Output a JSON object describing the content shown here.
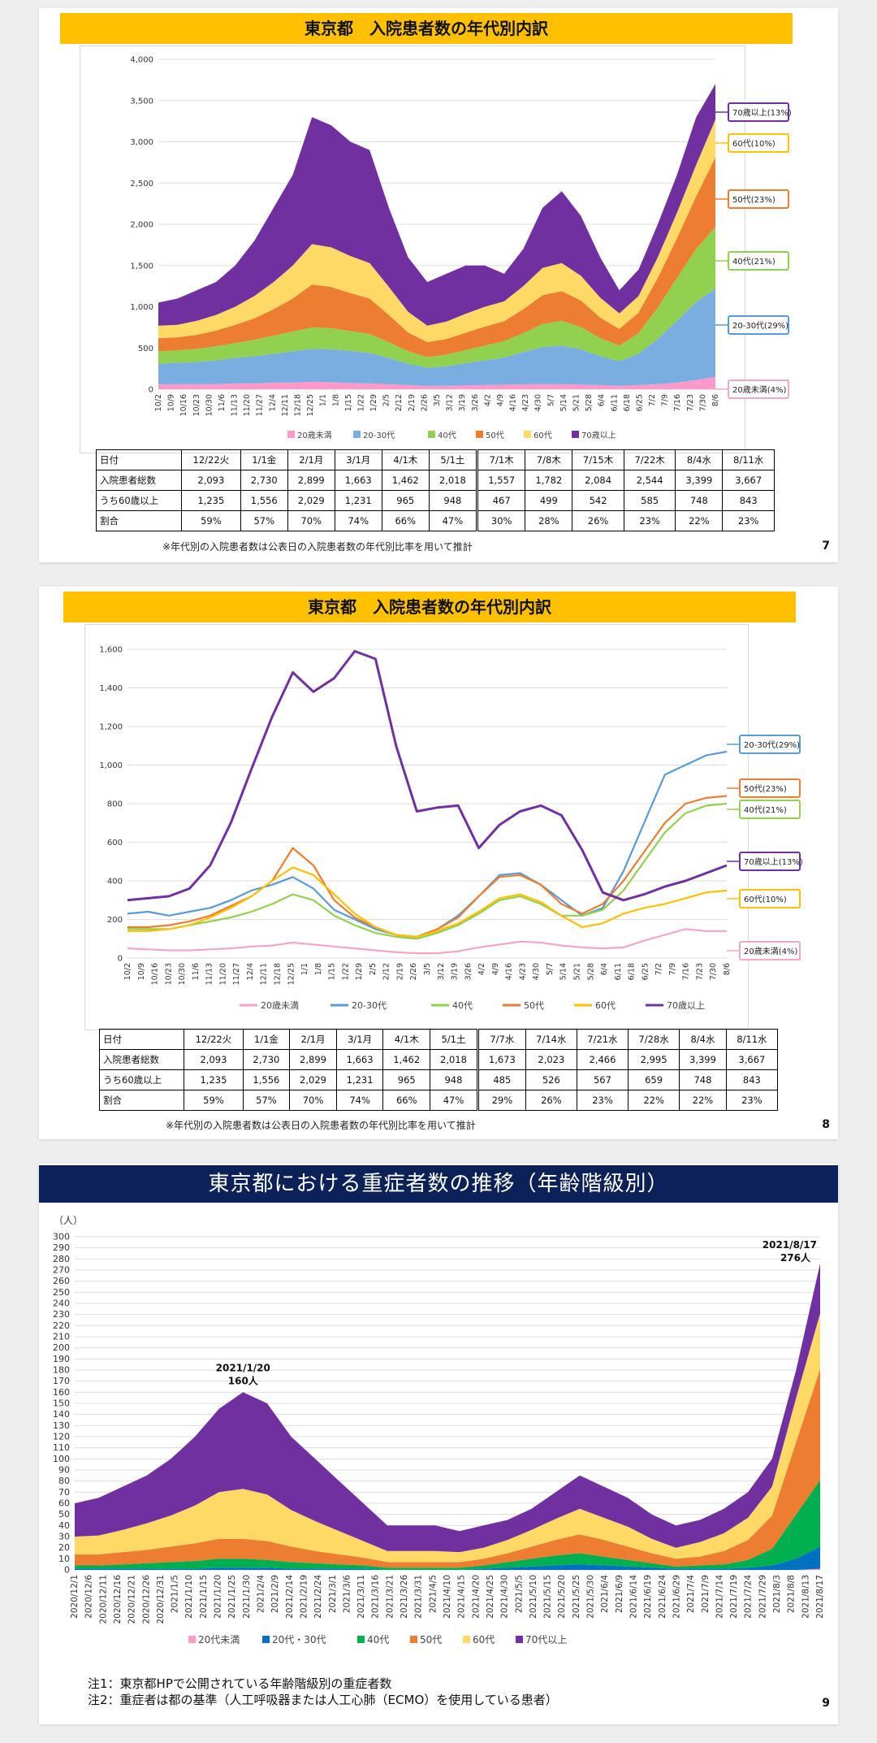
{
  "slide1": {
    "title": "東京都　入院患者数の年代別内訳",
    "page": "7",
    "note": "※年代別の入院患者数は公表日の入院患者数の年代別比率を用いて推計",
    "chart_data": {
      "type": "area",
      "stacked": true,
      "ylim": [
        0,
        4000
      ],
      "yticks": [
        0,
        500,
        1000,
        1500,
        2000,
        2500,
        3000,
        3500,
        4000
      ],
      "xtick_labels": [
        "10/2",
        "10/9",
        "10/16",
        "10/23",
        "10/30",
        "11/6",
        "11/13",
        "11/20",
        "11/27",
        "12/4",
        "12/11",
        "12/18",
        "12/25",
        "1/1",
        "1/8",
        "1/15",
        "1/22",
        "1/29",
        "2/5",
        "2/12",
        "2/19",
        "2/26",
        "3/5",
        "3/12",
        "3/19",
        "3/26",
        "4/2",
        "4/9",
        "4/16",
        "4/23",
        "4/30",
        "5/7",
        "5/14",
        "5/21",
        "5/28",
        "6/4",
        "6/11",
        "6/18",
        "6/25",
        "7/2",
        "7/9",
        "7/16",
        "7/23",
        "7/30",
        "8/6"
      ],
      "legend": [
        "20歳未満",
        "20-30代",
        "40代",
        "50代",
        "60代",
        "70歳以上"
      ],
      "total": [
        1050,
        1100,
        1200,
        1300,
        1500,
        1800,
        2200,
        2600,
        3300,
        3200,
        3000,
        2900,
        2200,
        1600,
        1300,
        1400,
        1500,
        1500,
        1400,
        1700,
        2200,
        2400,
        2100,
        1600,
        1200,
        1450,
        2000,
        2600,
        3300,
        3700
      ],
      "series": [
        {
          "name": "20歳未満",
          "color": "#ff99cc",
          "values": [
            60,
            60,
            60,
            60,
            70,
            70,
            80,
            80,
            90,
            85,
            75,
            70,
            60,
            50,
            40,
            40,
            45,
            50,
            55,
            60,
            60,
            60,
            55,
            50,
            40,
            50,
            60,
            80,
            110,
            150
          ]
        },
        {
          "name": "20-30代",
          "color": "#7aaee0",
          "values": [
            250,
            260,
            270,
            290,
            310,
            330,
            350,
            380,
            400,
            400,
            390,
            370,
            320,
            260,
            220,
            240,
            270,
            300,
            330,
            390,
            450,
            470,
            430,
            350,
            300,
            380,
            550,
            750,
            950,
            1070
          ]
        },
        {
          "name": "40代",
          "color": "#92d050",
          "values": [
            150,
            150,
            160,
            170,
            180,
            200,
            220,
            240,
            260,
            255,
            240,
            230,
            190,
            150,
            130,
            140,
            160,
            180,
            200,
            230,
            280,
            300,
            270,
            220,
            190,
            250,
            380,
            520,
            640,
            750
          ]
        },
        {
          "name": "50代",
          "color": "#ed7d31",
          "values": [
            160,
            160,
            170,
            190,
            220,
            260,
            320,
            400,
            520,
            500,
            460,
            430,
            330,
            230,
            180,
            190,
            210,
            230,
            240,
            290,
            350,
            360,
            320,
            250,
            200,
            250,
            360,
            480,
            640,
            840
          ]
        },
        {
          "name": "60代",
          "color": "#ffd966",
          "values": [
            150,
            150,
            170,
            190,
            220,
            270,
            330,
            400,
            490,
            480,
            450,
            430,
            340,
            250,
            200,
            210,
            230,
            240,
            240,
            280,
            330,
            340,
            300,
            240,
            190,
            200,
            250,
            310,
            380,
            460
          ]
        },
        {
          "name": "70歳以上",
          "color": "#7030a0",
          "values": [
            280,
            320,
            370,
            400,
            500,
            670,
            900,
            1100,
            1540,
            1480,
            1385,
            1370,
            960,
            660,
            530,
            580,
            585,
            500,
            335,
            450,
            730,
            870,
            725,
            490,
            280,
            320,
            400,
            460,
            580,
            430
          ]
        }
      ],
      "annotations": [
        "70歳以上(13%)",
        "60代(10%)",
        "50代(23%)",
        "40代(21%)",
        "20-30代(29%)",
        "20歳未満(4%)"
      ]
    },
    "table": {
      "header": [
        "日付",
        "12/22火",
        "1/1金",
        "2/1月",
        "3/1月",
        "4/1木",
        "5/1土",
        "7/1木",
        "7/8木",
        "7/15木",
        "7/22木",
        "8/4水",
        "8/11水"
      ],
      "rows": [
        [
          "入院患者総数",
          "2,093",
          "2,730",
          "2,899",
          "1,663",
          "1,462",
          "2,018",
          "1,557",
          "1,782",
          "2,084",
          "2,544",
          "3,399",
          "3,667"
        ],
        [
          "うち60歳以上",
          "1,235",
          "1,556",
          "2,029",
          "1,231",
          "965",
          "948",
          "467",
          "499",
          "542",
          "585",
          "748",
          "843"
        ],
        [
          "割合",
          "59%",
          "57%",
          "70%",
          "74%",
          "66%",
          "47%",
          "30%",
          "28%",
          "26%",
          "23%",
          "22%",
          "23%"
        ]
      ]
    }
  },
  "slide2": {
    "title": "東京都　入院患者数の年代別内訳",
    "page": "8",
    "note": "※年代別の入院患者数は公表日の入院患者数の年代別比率を用いて推計",
    "chart_data": {
      "type": "line",
      "ylim": [
        0,
        1600
      ],
      "yticks": [
        0,
        200,
        400,
        600,
        800,
        1000,
        1200,
        1400,
        1600
      ],
      "xtick_labels": [
        "10/2",
        "10/9",
        "10/16",
        "10/23",
        "10/30",
        "11/6",
        "11/13",
        "11/20",
        "11/27",
        "12/4",
        "12/11",
        "12/18",
        "12/25",
        "1/1",
        "1/8",
        "1/15",
        "1/22",
        "1/29",
        "2/5",
        "2/12",
        "2/19",
        "2/26",
        "3/5",
        "3/12",
        "3/19",
        "3/26",
        "4/2",
        "4/9",
        "4/16",
        "4/23",
        "4/30",
        "5/7",
        "5/14",
        "5/21",
        "5/28",
        "6/4",
        "6/11",
        "6/18",
        "6/25",
        "7/2",
        "7/9",
        "7/16",
        "7/23",
        "7/30",
        "8/6"
      ],
      "legend": [
        "20歳未満",
        "20-30代",
        "40代",
        "50代",
        "60代",
        "70歳以上"
      ],
      "series": [
        {
          "name": "20歳未満",
          "color": "#f4a6c8",
          "values": [
            50,
            45,
            40,
            40,
            45,
            50,
            60,
            65,
            80,
            70,
            60,
            50,
            40,
            30,
            25,
            25,
            35,
            55,
            70,
            85,
            80,
            65,
            55,
            50,
            55,
            90,
            120,
            150,
            140,
            140
          ]
        },
        {
          "name": "20-30代",
          "color": "#5b9bd5",
          "values": [
            230,
            240,
            220,
            240,
            260,
            300,
            350,
            380,
            420,
            360,
            250,
            200,
            150,
            120,
            110,
            150,
            220,
            320,
            430,
            440,
            380,
            300,
            220,
            260,
            450,
            700,
            950,
            1000,
            1050,
            1070
          ]
        },
        {
          "name": "40代",
          "color": "#92d050",
          "values": [
            150,
            150,
            150,
            170,
            190,
            210,
            240,
            280,
            330,
            300,
            220,
            170,
            130,
            110,
            100,
            130,
            170,
            230,
            300,
            320,
            280,
            220,
            220,
            250,
            350,
            500,
            650,
            750,
            790,
            800
          ]
        },
        {
          "name": "50代",
          "color": "#ed7d31",
          "values": [
            160,
            160,
            170,
            190,
            220,
            270,
            320,
            400,
            570,
            480,
            300,
            210,
            160,
            120,
            110,
            150,
            210,
            320,
            420,
            430,
            380,
            280,
            230,
            280,
            400,
            550,
            700,
            800,
            830,
            840
          ]
        },
        {
          "name": "60代",
          "color": "#ffc000",
          "values": [
            140,
            140,
            150,
            170,
            210,
            260,
            320,
            400,
            470,
            430,
            330,
            230,
            160,
            120,
            110,
            140,
            180,
            240,
            310,
            330,
            290,
            220,
            160,
            180,
            230,
            260,
            280,
            310,
            340,
            350
          ]
        },
        {
          "name": "70歳以上",
          "color": "#7030a0",
          "values": [
            300,
            310,
            320,
            360,
            480,
            700,
            980,
            1250,
            1480,
            1380,
            1450,
            1590,
            1550,
            1100,
            760,
            780,
            790,
            570,
            690,
            760,
            790,
            740,
            560,
            340,
            300,
            330,
            370,
            400,
            440,
            480
          ]
        }
      ],
      "annotations": [
        "20-30代(29%)",
        "50代(23%)",
        "40代(21%)",
        "70歳以上(13%)",
        "60代(10%)",
        "20歳未満(4%)"
      ]
    },
    "table": {
      "header": [
        "日付",
        "12/22火",
        "1/1金",
        "2/1月",
        "3/1月",
        "4/1木",
        "5/1土",
        "7/7水",
        "7/14水",
        "7/21水",
        "7/28水",
        "8/4水",
        "8/11水"
      ],
      "rows": [
        [
          "入院患者総数",
          "2,093",
          "2,730",
          "2,899",
          "1,663",
          "1,462",
          "2,018",
          "1,673",
          "2,023",
          "2,466",
          "2,995",
          "3,399",
          "3,667"
        ],
        [
          "うち60歳以上",
          "1,235",
          "1,556",
          "2,029",
          "1,231",
          "965",
          "948",
          "485",
          "526",
          "567",
          "659",
          "748",
          "843"
        ],
        [
          "割合",
          "59%",
          "57%",
          "70%",
          "74%",
          "66%",
          "47%",
          "29%",
          "26%",
          "23%",
          "22%",
          "22%",
          "23%"
        ]
      ]
    }
  },
  "slide3": {
    "title": "東京都における重症者数の推移（年齢階級別）",
    "page": "9",
    "notes": [
      "注1：東京都HPで公開されている年齢階級別の重症者数",
      "注2：重症者は都の基準（人工呼吸器または人工心肺（ECMO）を使用している患者）"
    ],
    "chart_data": {
      "type": "area",
      "stacked": true,
      "ylabel": "（人）",
      "ylim": [
        0,
        300
      ],
      "yticks": [
        0,
        10,
        20,
        30,
        40,
        50,
        60,
        70,
        80,
        90,
        100,
        110,
        120,
        130,
        140,
        150,
        160,
        170,
        180,
        190,
        200,
        210,
        220,
        230,
        240,
        250,
        260,
        270,
        280,
        290,
        300
      ],
      "xtick_labels": [
        "2020/12/1",
        "2020/12/6",
        "2020/12/11",
        "2020/12/16",
        "2020/12/21",
        "2020/12/26",
        "2020/12/31",
        "2021/1/5",
        "2021/1/10",
        "2021/1/15",
        "2021/1/20",
        "2021/1/25",
        "2021/1/30",
        "2021/2/4",
        "2021/2/9",
        "2021/2/14",
        "2021/2/19",
        "2021/2/24",
        "2021/3/1",
        "2021/3/6",
        "2021/3/11",
        "2021/3/16",
        "2021/3/21",
        "2021/3/26",
        "2021/3/31",
        "2021/4/5",
        "2021/4/10",
        "2021/4/15",
        "2021/4/20",
        "2021/4/25",
        "2021/4/30",
        "2021/5/5",
        "2021/5/10",
        "2021/5/15",
        "2021/5/20",
        "2021/5/25",
        "2021/5/30",
        "2021/6/4",
        "2021/6/9",
        "2021/6/14",
        "2021/6/19",
        "2021/6/24",
        "2021/6/29",
        "2021/7/4",
        "2021/7/9",
        "2021/7/14",
        "2021/7/19",
        "2021/7/24",
        "2021/7/29",
        "2021/8/3",
        "2021/8/8",
        "2021/8/13",
        "2021/8/17"
      ],
      "legend": [
        "20代未満",
        "20代・30代",
        "40代",
        "50代",
        "60代",
        "70代以上"
      ],
      "total": [
        60,
        65,
        75,
        85,
        100,
        120,
        145,
        160,
        150,
        120,
        100,
        80,
        60,
        40,
        40,
        40,
        35,
        40,
        45,
        55,
        70,
        85,
        75,
        65,
        50,
        40,
        45,
        55,
        70,
        100,
        180,
        276
      ],
      "series": [
        {
          "name": "20代未満",
          "color": "#ff99cc",
          "values": [
            0,
            0,
            0,
            0,
            0,
            0,
            0,
            0,
            0,
            0,
            0,
            0,
            0,
            0,
            0,
            0,
            0,
            0,
            0,
            0,
            0,
            0,
            0,
            0,
            0,
            0,
            0,
            0,
            0,
            0,
            0,
            1
          ]
        },
        {
          "name": "20代・30代",
          "color": "#0070c0",
          "values": [
            1,
            1,
            1,
            1,
            1,
            1,
            2,
            2,
            2,
            1,
            1,
            1,
            1,
            0,
            0,
            0,
            0,
            1,
            2,
            3,
            4,
            5,
            4,
            3,
            2,
            1,
            1,
            1,
            2,
            4,
            10,
            20
          ]
        },
        {
          "name": "40代",
          "color": "#00b050",
          "values": [
            3,
            3,
            4,
            5,
            6,
            7,
            8,
            8,
            7,
            6,
            5,
            4,
            3,
            2,
            2,
            2,
            2,
            3,
            5,
            7,
            9,
            10,
            8,
            6,
            4,
            2,
            3,
            4,
            7,
            15,
            40,
            60
          ]
        },
        {
          "name": "50代",
          "color": "#ed7d31",
          "values": [
            10,
            10,
            11,
            12,
            14,
            16,
            18,
            18,
            17,
            14,
            11,
            9,
            7,
            5,
            5,
            5,
            5,
            6,
            8,
            11,
            14,
            17,
            15,
            12,
            9,
            7,
            8,
            12,
            18,
            30,
            65,
            100
          ]
        },
        {
          "name": "60代",
          "color": "#ffd966",
          "values": [
            16,
            17,
            20,
            24,
            28,
            34,
            42,
            45,
            42,
            33,
            27,
            21,
            15,
            10,
            10,
            10,
            9,
            10,
            12,
            15,
            19,
            23,
            20,
            18,
            13,
            10,
            13,
            16,
            20,
            26,
            40,
            50
          ]
        },
        {
          "name": "70代以上",
          "color": "#7030a0",
          "values": [
            30,
            34,
            39,
            43,
            51,
            62,
            75,
            87,
            82,
            66,
            56,
            45,
            34,
            23,
            23,
            23,
            19,
            20,
            18,
            19,
            24,
            30,
            28,
            26,
            22,
            20,
            20,
            22,
            23,
            25,
            25,
            45
          ]
        }
      ],
      "annotations": [
        {
          "date": "2021/1/20",
          "value": "160人"
        },
        {
          "date": "2021/8/17",
          "value": "276人"
        }
      ]
    }
  }
}
